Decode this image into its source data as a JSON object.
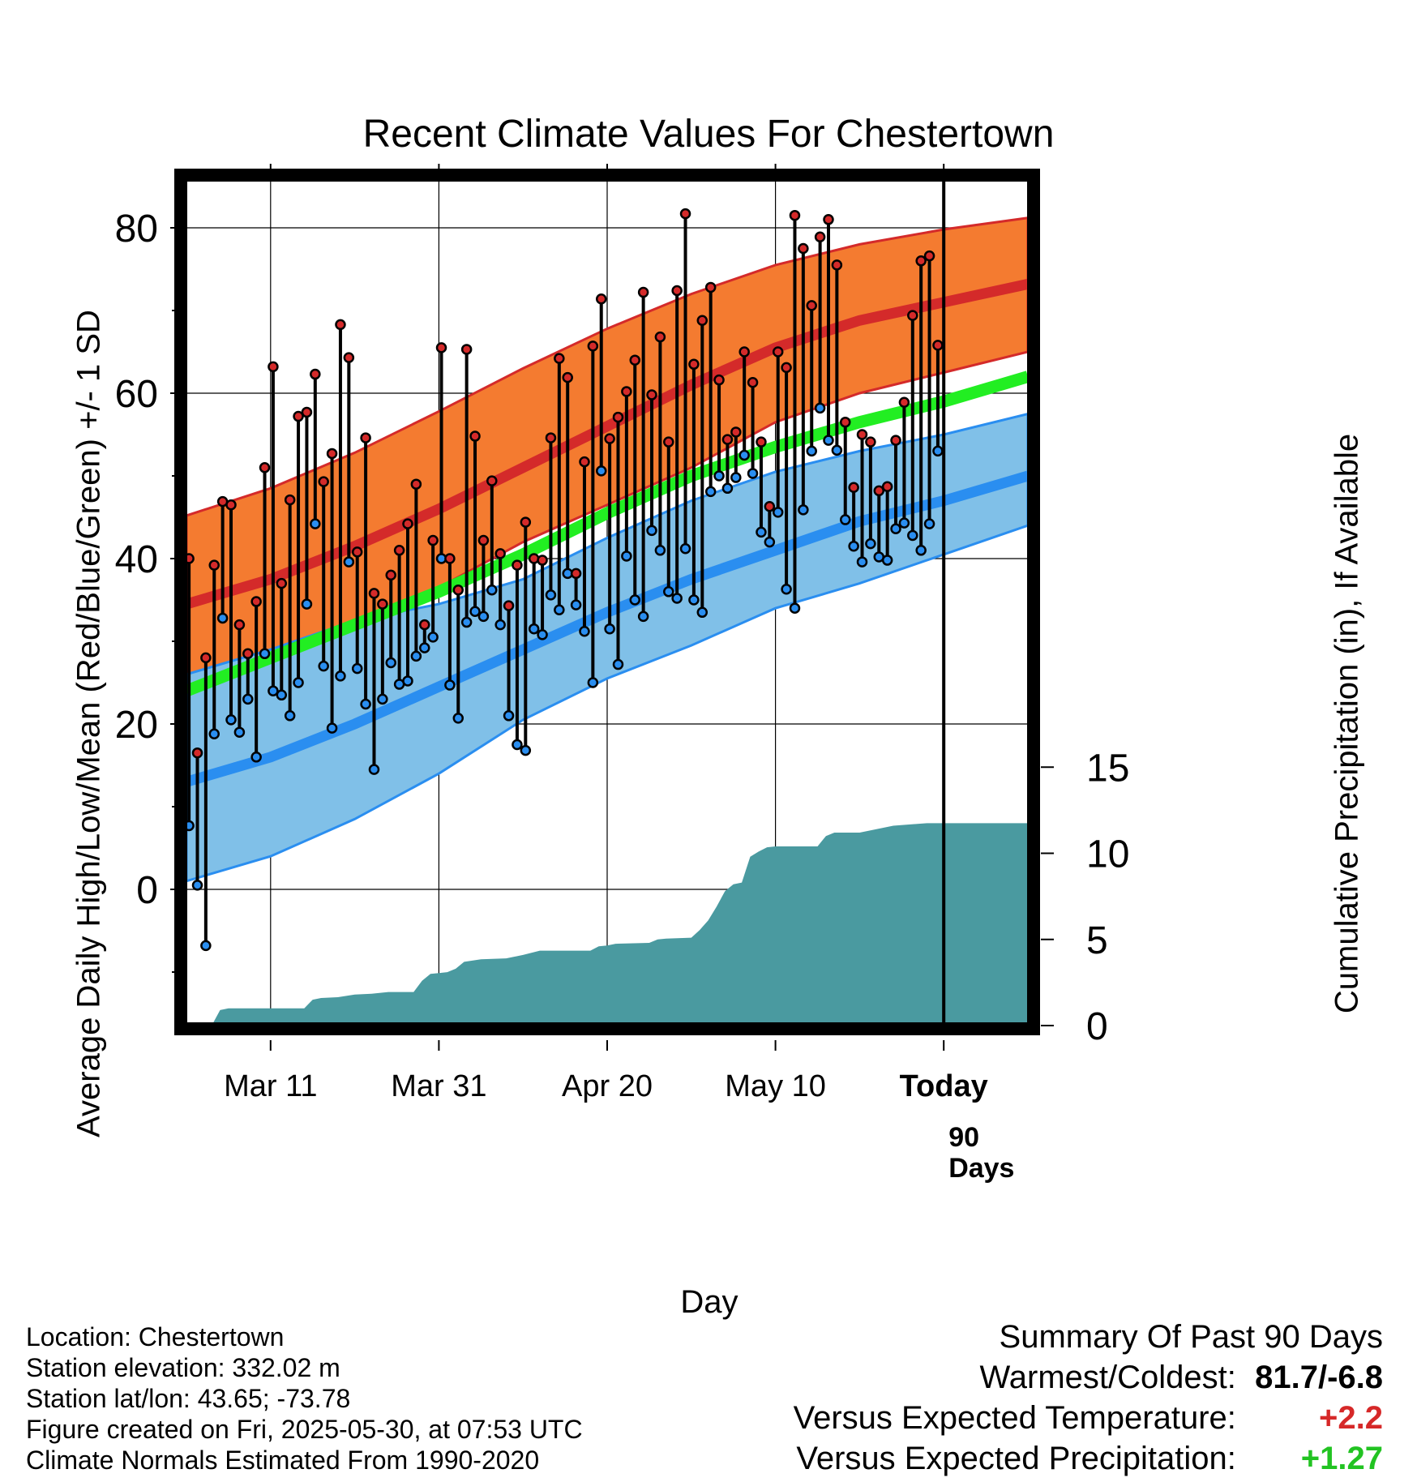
{
  "title": "Recent Climate Values For Chestertown",
  "colors": {
    "high_band": "#f47b30",
    "high_mean_line": "#d42a2a",
    "low_band": "#80c0e8",
    "low_mean_line": "#2a8ef0",
    "mean_line": "#22ee22",
    "precip_fill": "#4a9aa0",
    "high_marker": "#d42a2a",
    "low_marker": "#2a8ef0",
    "warm_value": "#000000",
    "temp_delta": "#d62828",
    "precip_delta": "#22c322"
  },
  "chart_data": {
    "type": "line",
    "title": "Recent Climate Values For Chestertown",
    "xlabel": "Day",
    "ylabel": "Average Daily High/Low/Mean (Red/Blue/Green) +/- 1 SD",
    "y2label": "Cumulative Precipitation (in), If Available",
    "x_tick_labels": [
      "Mar 11",
      "Mar 31",
      "Apr 20",
      "May 10",
      "Today"
    ],
    "x_tick_days": [
      10,
      30,
      50,
      70,
      90
    ],
    "x_range": [
      0,
      100
    ],
    "y_ticks": [
      "0",
      "20",
      "40",
      "60",
      "80"
    ],
    "y_range": [
      -16,
      85
    ],
    "y2_ticks": [
      "0",
      "5",
      "10",
      "15"
    ],
    "y2_range": [
      0,
      15.5
    ],
    "grid": true,
    "today_marker": {
      "day": 90,
      "label_line1": "90",
      "label_line2": "Days"
    },
    "normals": {
      "days": [
        0,
        10,
        20,
        30,
        40,
        50,
        60,
        70,
        80,
        90,
        100
      ],
      "high_mean": [
        34.5,
        37.5,
        41.5,
        46.0,
        51.0,
        56.0,
        61.0,
        65.5,
        68.8,
        71.0,
        73.2
      ],
      "high_sd_upper": [
        45.2,
        48.5,
        52.8,
        57.8,
        63.0,
        67.8,
        72.0,
        75.5,
        78.0,
        79.8,
        81.2
      ],
      "high_sd_lower": [
        25.5,
        28.5,
        32.0,
        36.5,
        42.0,
        46.5,
        51.0,
        56.5,
        60.0,
        62.5,
        65.0
      ],
      "mean": [
        24.0,
        28.0,
        32.0,
        36.0,
        40.5,
        45.5,
        50.0,
        53.5,
        56.5,
        59.0,
        62.0
      ],
      "low_mean": [
        13.0,
        16.0,
        20.0,
        24.5,
        29.0,
        33.5,
        37.5,
        41.0,
        44.5,
        47.0,
        50.0
      ],
      "low_sd_upper": [
        26.0,
        29.0,
        32.5,
        34.5,
        37.5,
        42.5,
        47.0,
        50.5,
        53.0,
        55.0,
        57.5
      ],
      "low_sd_lower": [
        1.0,
        4.0,
        8.5,
        14.0,
        20.5,
        25.5,
        29.5,
        34.0,
        37.0,
        40.5,
        44.0
      ]
    },
    "daily": {
      "highs": [
        40.0,
        16.5,
        28.0,
        39.2,
        46.9,
        46.5,
        32.0,
        28.5,
        34.8,
        51.0,
        63.2,
        37.0,
        47.1,
        57.2,
        57.7,
        62.3,
        49.3,
        52.7,
        68.3,
        64.3,
        40.8,
        54.6,
        35.8,
        34.5,
        38.0,
        41.0,
        44.2,
        49.0,
        32.0,
        42.2,
        65.5,
        40.0,
        36.2,
        65.3,
        54.8,
        42.2,
        49.4,
        40.6,
        34.3,
        39.2,
        44.4,
        40.0,
        39.8,
        54.6,
        64.2,
        61.9,
        38.2,
        51.7,
        65.7,
        71.4,
        54.5,
        57.1,
        60.2,
        64.0,
        72.2,
        59.8,
        66.8,
        54.1,
        72.4,
        81.7,
        63.5,
        68.8,
        72.8,
        61.6,
        54.4,
        55.3,
        65.0,
        61.3,
        54.1,
        46.3,
        65.0,
        63.1,
        81.5,
        77.5,
        70.6,
        78.9,
        81.0,
        75.5,
        56.5,
        48.6,
        55.0,
        54.1,
        48.2,
        48.7,
        54.3,
        58.9,
        69.4,
        76.0,
        76.6,
        65.8
      ],
      "lows": [
        7.7,
        0.5,
        -6.8,
        18.8,
        32.8,
        20.5,
        19.0,
        23.0,
        16.0,
        28.5,
        24.0,
        23.5,
        21.0,
        25.0,
        34.5,
        44.2,
        27.0,
        19.5,
        25.8,
        39.6,
        26.7,
        22.4,
        14.5,
        23.0,
        27.4,
        24.8,
        25.2,
        28.2,
        29.2,
        30.5,
        40.0,
        24.7,
        20.7,
        32.3,
        33.6,
        33.0,
        36.2,
        32.0,
        21.0,
        17.5,
        16.8,
        31.5,
        30.8,
        35.6,
        33.8,
        38.2,
        34.4,
        31.2,
        25.0,
        50.6,
        31.5,
        27.2,
        40.3,
        35.0,
        33.0,
        43.4,
        41.0,
        36.0,
        35.2,
        41.2,
        35.0,
        33.5,
        48.1,
        50.0,
        48.5,
        49.8,
        52.5,
        50.3,
        43.2,
        42.0,
        45.6,
        36.3,
        34.0,
        45.9,
        53.0,
        58.2,
        54.3,
        53.1,
        44.7,
        41.5,
        39.6,
        41.8,
        40.2,
        39.8,
        43.6,
        44.3,
        42.8,
        41.0,
        44.2,
        53.0
      ],
      "precip_cumulative_days": [
        0,
        3,
        4,
        5,
        10,
        14,
        15,
        16,
        18,
        20,
        22,
        24,
        27,
        28,
        29,
        30,
        31,
        32,
        33,
        35,
        38,
        40,
        42,
        44,
        48,
        49,
        50,
        51,
        55,
        56,
        57,
        60,
        61,
        62,
        63,
        64,
        65,
        66,
        67,
        68,
        69,
        70,
        71,
        75,
        76,
        77,
        80,
        82,
        84,
        88,
        90,
        100
      ],
      "precip_cumulative_values": [
        0,
        0,
        0.9,
        1.0,
        1.0,
        1.0,
        1.5,
        1.6,
        1.65,
        1.8,
        1.85,
        1.95,
        1.95,
        2.6,
        3.0,
        3.05,
        3.1,
        3.3,
        3.7,
        3.85,
        3.9,
        4.1,
        4.35,
        4.35,
        4.35,
        4.6,
        4.65,
        4.75,
        4.8,
        5.0,
        5.05,
        5.1,
        5.55,
        6.1,
        6.9,
        7.8,
        8.2,
        8.3,
        9.8,
        10.1,
        10.35,
        10.4,
        10.4,
        10.4,
        11.0,
        11.2,
        11.2,
        11.4,
        11.6,
        11.75,
        11.75,
        11.75
      ]
    }
  },
  "metadata_text": {
    "location": "Location: Chestertown",
    "elevation": "Station elevation: 332.02 m",
    "latlon": "Station lat/lon: 43.65; -73.78",
    "created": "Figure created on Fri, 2025-05-30, at 07:53 UTC",
    "normals": "Climate Normals Estimated From 1990-2020"
  },
  "summary": {
    "heading": "Summary Of Past 90 Days",
    "warm_label": "Warmest/Coldest:",
    "warm_value": "81.7/-6.8",
    "temp_label": "Versus Expected Temperature:",
    "temp_value": "+2.2",
    "precip_label": "Versus Expected Precipitation:",
    "precip_value": "+1.27"
  }
}
